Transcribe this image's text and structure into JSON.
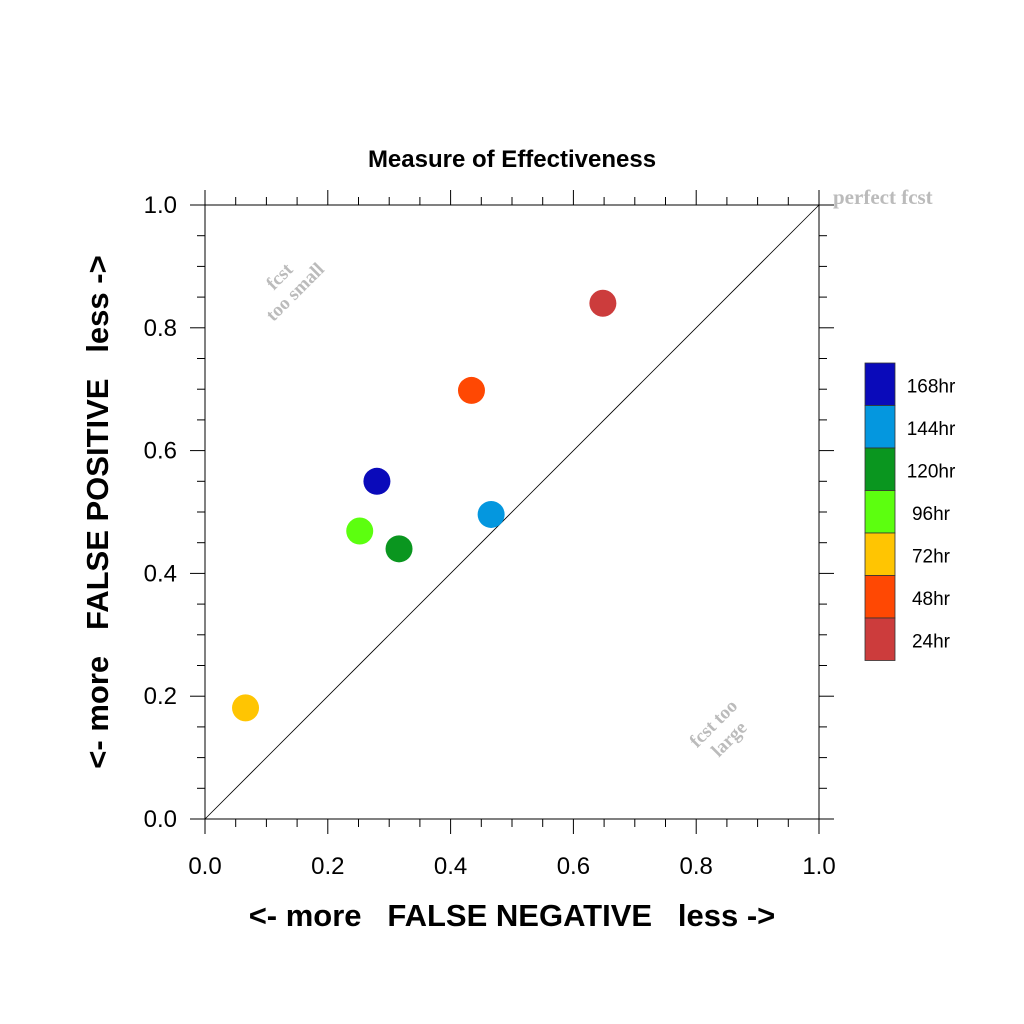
{
  "chart_data": {
    "type": "scatter",
    "title": "Measure of Effectiveness",
    "xlabel": "<- more   FALSE NEGATIVE   less ->",
    "ylabel": "<- more   FALSE POSITIVE   less ->",
    "xlim": [
      0.0,
      1.0
    ],
    "ylim": [
      0.0,
      1.0
    ],
    "x_ticks": [
      "0.0",
      "0.2",
      "0.4",
      "0.6",
      "0.8",
      "1.0"
    ],
    "y_ticks": [
      "0.0",
      "0.2",
      "0.4",
      "0.6",
      "0.8",
      "1.0"
    ],
    "grid": false,
    "legend_placement": "right",
    "reference_line": [
      [
        0,
        0
      ],
      [
        1,
        1
      ]
    ],
    "annotations": {
      "perfect": "perfect fcst",
      "too_small": [
        "fcst",
        "too small"
      ],
      "too_large": [
        "fcst too",
        "large"
      ]
    },
    "series": [
      {
        "name": "168hr",
        "color": "#0a0aba",
        "x": 0.28,
        "y": 0.55
      },
      {
        "name": "144hr",
        "color": "#0497df",
        "x": 0.466,
        "y": 0.496
      },
      {
        "name": "120hr",
        "color": "#0a961f",
        "x": 0.316,
        "y": 0.44
      },
      {
        "name": "96hr",
        "color": "#5cff0f",
        "x": 0.252,
        "y": 0.469
      },
      {
        "name": "72hr",
        "color": "#ffc502",
        "x": 0.066,
        "y": 0.181
      },
      {
        "name": "48hr",
        "color": "#ff4803",
        "x": 0.434,
        "y": 0.698
      },
      {
        "name": "24hr",
        "color": "#cc3c3c",
        "x": 0.648,
        "y": 0.84
      }
    ]
  }
}
